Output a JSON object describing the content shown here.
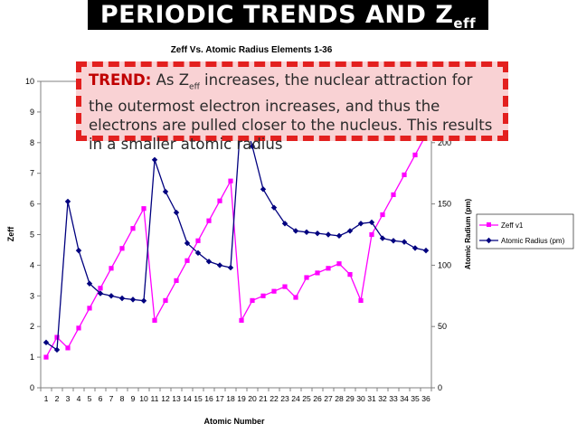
{
  "slide": {
    "title_main": "PERIODIC TRENDS AND Z",
    "title_sub": "eff"
  },
  "callout": {
    "lead": "TREND:",
    "text_before": " As Z",
    "text_sub": "eff",
    "text_after": " increases, the nuclear attraction for the outermost electron increases, and thus the electrons are pulled closer to the nucleus. This results in a smaller atomic radius"
  },
  "chart_data": {
    "type": "line",
    "title": "Zeff Vs. Atomic Radius Elements 1-36",
    "xlabel": "Atomic Number",
    "ylabel": "Zeff",
    "y2label": "Atomic Radium (pm)",
    "x": [
      1,
      2,
      3,
      4,
      5,
      6,
      7,
      8,
      9,
      10,
      11,
      12,
      13,
      14,
      15,
      16,
      17,
      18,
      19,
      20,
      21,
      22,
      23,
      24,
      25,
      26,
      27,
      28,
      29,
      30,
      31,
      32,
      33,
      34,
      35,
      36
    ],
    "x_tick_labels": [
      "1",
      "2",
      "3",
      "4",
      "5",
      "6",
      "7",
      "8",
      "9",
      "10",
      "11",
      "12",
      "13",
      "14",
      "15",
      "16",
      "17",
      "18",
      "19",
      "20",
      "21",
      "22",
      "23",
      "24",
      "25",
      "26",
      "27",
      "28",
      "29",
      "30",
      "31",
      "32",
      "33",
      "34",
      "35",
      "36"
    ],
    "ylim": [
      0,
      10
    ],
    "y_ticks": [
      "0",
      "1",
      "2",
      "3",
      "4",
      "5",
      "6",
      "7",
      "8",
      "9",
      "10"
    ],
    "y2lim": [
      0,
      250
    ],
    "y2_ticks": [
      "0",
      "50",
      "100",
      "150",
      "200"
    ],
    "legend_position": "right",
    "series": [
      {
        "name": "Zeff v1",
        "axis": "left",
        "color": "#ff00ff",
        "marker": "square",
        "values": [
          1.0,
          1.65,
          1.3,
          1.95,
          2.6,
          3.25,
          3.9,
          4.55,
          5.2,
          5.85,
          2.2,
          2.85,
          3.5,
          4.15,
          4.8,
          5.45,
          6.1,
          6.75,
          2.2,
          2.85,
          3.0,
          3.15,
          3.3,
          2.95,
          3.6,
          3.75,
          3.9,
          4.05,
          3.7,
          2.85,
          5.0,
          5.65,
          6.3,
          6.95,
          7.6,
          8.25
        ]
      },
      {
        "name": "Atomic Radius (pm)",
        "axis": "right",
        "color": "#00007f",
        "marker": "diamond",
        "values": [
          37,
          31,
          152,
          112,
          85,
          77,
          75,
          73,
          72,
          71,
          186,
          160,
          143,
          118,
          110,
          103,
          100,
          98,
          227,
          197,
          162,
          147,
          134,
          128,
          127,
          126,
          125,
          124,
          128,
          134,
          135,
          122,
          120,
          119,
          114,
          112
        ]
      }
    ]
  }
}
